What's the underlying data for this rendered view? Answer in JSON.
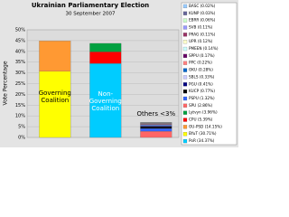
{
  "chart_data": {
    "type": "bar",
    "title": "Ukrainian Parliamentary Election",
    "subtitle": "30 September 2007",
    "y_label": "Vote Percentage",
    "categories": [
      "Governing Coalition",
      "Non-Governing Coalition",
      "Others <3%"
    ],
    "ylim": [
      0,
      50
    ],
    "yticks": [
      {
        "value": 0,
        "label": "0%"
      },
      {
        "value": 5,
        "label": "5%"
      },
      {
        "value": 10,
        "label": "10%"
      },
      {
        "value": 15,
        "label": "15%"
      },
      {
        "value": 20,
        "label": "20%"
      },
      {
        "value": 25,
        "label": "25%"
      },
      {
        "value": 30,
        "label": "30%"
      },
      {
        "value": 35,
        "label": "35%"
      },
      {
        "value": 40,
        "label": "40%"
      },
      {
        "value": 45,
        "label": "45%"
      },
      {
        "value": 50,
        "label": "50%"
      }
    ],
    "grid": true,
    "stacked": true,
    "legend_position": "right",
    "series": [
      {
        "name": "BASC (0.02%)",
        "color": "#99ccff",
        "values": [
          null,
          null,
          0.02
        ]
      },
      {
        "name": "KUNP (0.03%)",
        "color": "#666699",
        "values": [
          null,
          null,
          0.03
        ]
      },
      {
        "name": "EBRR (0.06%)",
        "color": "#ccffcc",
        "values": [
          null,
          null,
          0.06
        ]
      },
      {
        "name": "SVB (0.11%)",
        "color": "#9999ff",
        "values": [
          null,
          null,
          0.11
        ]
      },
      {
        "name": "PRAG (0.11%)",
        "color": "#993366",
        "values": [
          null,
          null,
          0.11
        ]
      },
      {
        "name": "UPR (0.12%)",
        "color": "#ffffcc",
        "values": [
          null,
          null,
          0.12
        ]
      },
      {
        "name": "PMEEN (0.14%)",
        "color": "#ccffff",
        "values": [
          null,
          null,
          0.14
        ]
      },
      {
        "name": "SPPU (0.17%)",
        "color": "#660066",
        "values": [
          null,
          null,
          0.17
        ]
      },
      {
        "name": "PPC (0.22%)",
        "color": "#ff8080",
        "values": [
          null,
          null,
          0.22
        ]
      },
      {
        "name": "OKU (0.28%)",
        "color": "#0066cc",
        "values": [
          null,
          null,
          0.28
        ]
      },
      {
        "name": "SBLS (0.33%)",
        "color": "#ccccff",
        "values": [
          null,
          null,
          0.33
        ]
      },
      {
        "name": "PGU (0.41%)",
        "color": "#000080",
        "values": [
          null,
          null,
          0.41
        ]
      },
      {
        "name": "KUCP (0.77%)",
        "color": "#000000",
        "values": [
          null,
          null,
          0.77
        ]
      },
      {
        "name": "PSPU (1.32%)",
        "color": "#3366ff",
        "values": [
          null,
          null,
          1.32
        ]
      },
      {
        "name": "SPU (2.86%)",
        "color": "#ff6666",
        "values": [
          null,
          null,
          2.86
        ]
      },
      {
        "name": "Lytvyn (3.96%)",
        "color": "#00a040",
        "values": [
          null,
          3.96,
          null
        ]
      },
      {
        "name": "CPU (5.39%)",
        "color": "#ff0000",
        "values": [
          null,
          5.39,
          null
        ]
      },
      {
        "name": "OU-PSD (14.15%)",
        "color": "#ff9933",
        "values": [
          14.15,
          null,
          null
        ]
      },
      {
        "name": "BYuT (30.71%)",
        "color": "#ffff00",
        "values": [
          30.71,
          null,
          null
        ]
      },
      {
        "name": "PoR (34.37%)",
        "color": "#00ccff",
        "values": [
          null,
          34.37,
          null
        ]
      }
    ]
  }
}
